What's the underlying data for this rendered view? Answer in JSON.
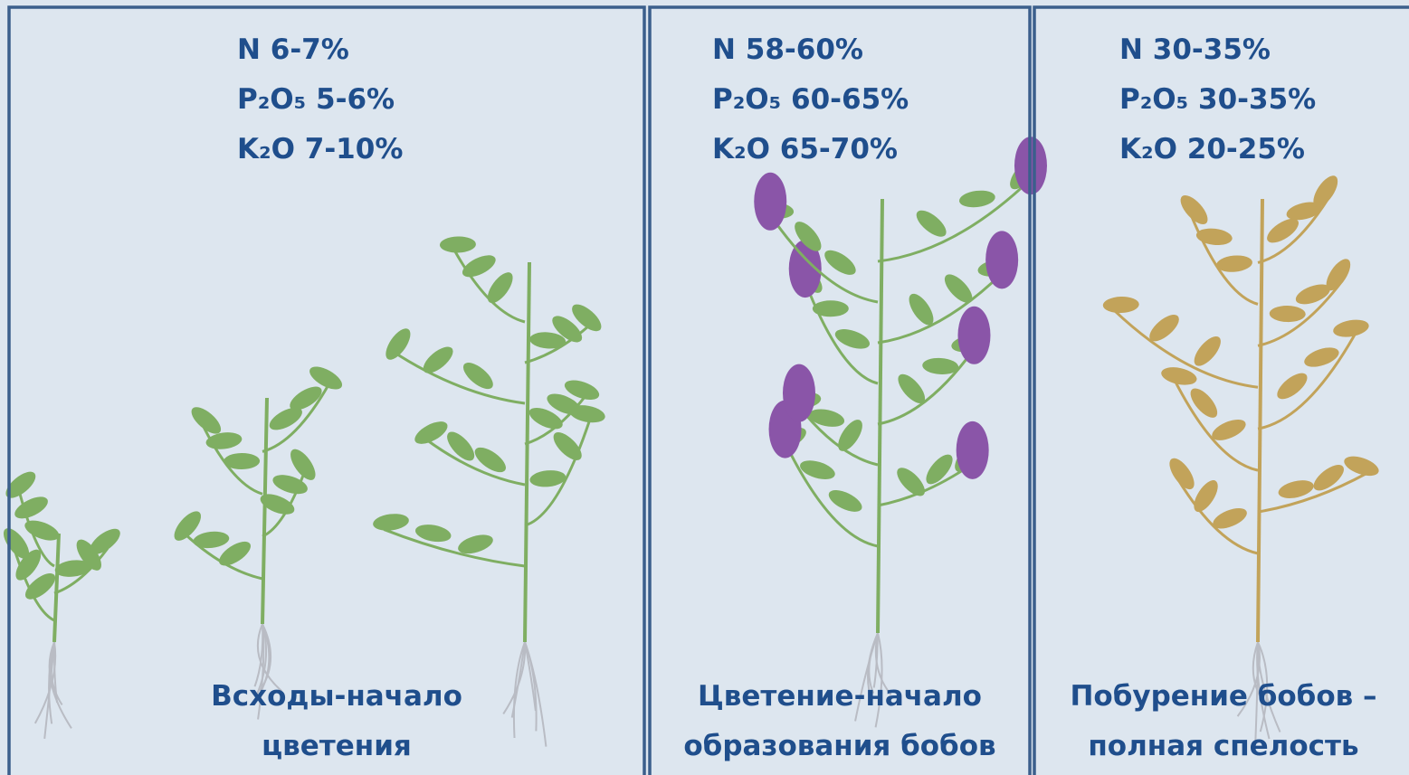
{
  "panels": [
    {
      "nutrients": [
        {
          "symbol": "N",
          "range": "6-7%"
        },
        {
          "symbol": "P₂O₅",
          "range": "5-6%"
        },
        {
          "symbol": "K₂O",
          "range": "7-10%"
        }
      ],
      "stage": [
        "Всходы-начало",
        "цветения"
      ]
    },
    {
      "nutrients": [
        {
          "symbol": "N",
          "range": "58-60%"
        },
        {
          "symbol": "P₂O₅",
          "range": "60-65%"
        },
        {
          "symbol": "K₂O",
          "range": "65-70%"
        }
      ],
      "stage": [
        "Цветение-начало",
        "образования бобов"
      ]
    },
    {
      "nutrients": [
        {
          "symbol": "N",
          "range": "30-35%"
        },
        {
          "symbol": "P₂O₅",
          "range": "30-35%"
        },
        {
          "symbol": "K₂O",
          "range": "20-25%"
        }
      ],
      "stage": [
        "Побурение бобов –",
        "полная спелость"
      ]
    }
  ]
}
